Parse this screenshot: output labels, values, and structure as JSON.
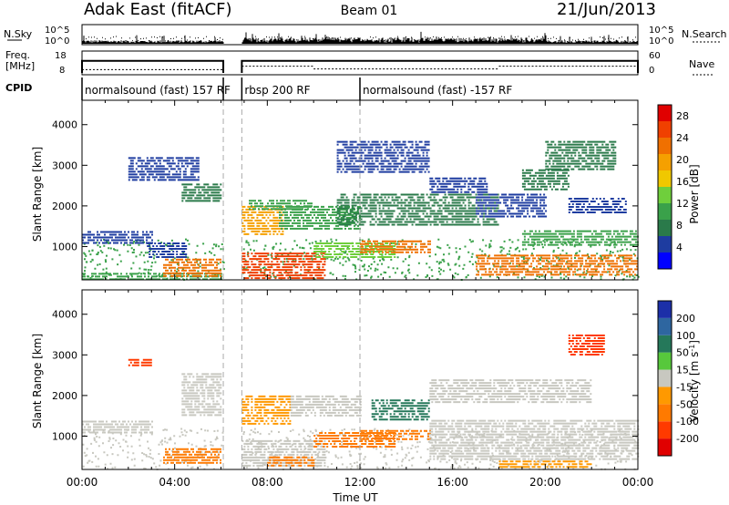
{
  "header": {
    "station": "Adak East (fitACF)",
    "beam": "Beam 01",
    "date": "21/Jun/2013"
  },
  "summary": {
    "nsky_label": "N.Sky",
    "nsearch_label": "N.Search",
    "freq_label_1": "Freq.",
    "freq_label_2": "[MHz]",
    "nave_label": "Nave",
    "cpid_label": "CPID",
    "log_tick_hi": "10^5",
    "log_tick_lo": "10^0",
    "freq_ticks": [
      "18",
      "8"
    ],
    "nave_ticks": [
      "60",
      "0"
    ],
    "cpid_segments": [
      {
        "label": "normalsound (fast) 157 RF",
        "start": 0.0,
        "end": 6.1
      },
      {
        "label": "rbsp 200 RF",
        "start": 6.9,
        "end": 12.0
      },
      {
        "label": "normalsound (fast) -157 RF",
        "start": 12.0,
        "end": 24.0
      }
    ],
    "freq_steps": [
      {
        "start": 0.0,
        "end": 6.1,
        "value": 14
      },
      {
        "start": 6.9,
        "end": 24.0,
        "value": 14
      }
    ],
    "nave_steps": [
      {
        "start": 0.0,
        "end": 6.1,
        "value": 10
      },
      {
        "start": 6.9,
        "end": 10.0,
        "value": 20
      },
      {
        "start": 10.0,
        "end": 18.0,
        "value": 12
      },
      {
        "start": 18.0,
        "end": 24.0,
        "value": 20
      }
    ]
  },
  "power_panel": {
    "ylabel": "Slant Range [km]",
    "colorbar_title": "Power [dB]",
    "colorbar_ticks": [
      "4",
      "8",
      "12",
      "16",
      "20",
      "24",
      "28"
    ],
    "colorbar_colors": [
      "#0000ff",
      "#1e3ca0",
      "#2a7a4a",
      "#3aa14a",
      "#6fcf3c",
      "#f0c800",
      "#f5a000",
      "#f07000",
      "#f04000",
      "#e00000"
    ]
  },
  "velocity_panel": {
    "ylabel": "Slant Range [km]",
    "colorbar_title": "Velocity [m s",
    "colorbar_title_sup": "-1",
    "colorbar_title_end": "]",
    "colorbar_ticks": [
      "200",
      "100",
      "50",
      "15",
      "-15",
      "-50",
      "-100",
      "-200"
    ],
    "colorbar_colors": [
      "#1c2fa8",
      "#2e66a0",
      "#25785a",
      "#57c83c",
      "#c8c8c0",
      "#ff9900",
      "#ff7a00",
      "#ff3a00",
      "#e00000"
    ]
  },
  "xaxis": {
    "label": "Time UT",
    "ticks": [
      "00:00",
      "04:00",
      "08:00",
      "12:00",
      "16:00",
      "20:00",
      "00:00"
    ]
  },
  "chart_data": {
    "type": "heatmap",
    "title": "Adak East (fitACF) Beam 01 21/Jun/2013",
    "xlabel": "Time UT",
    "xlim": [
      0,
      24
    ],
    "ylabel": "Slant Range [km]",
    "ylim": [
      180,
      4600
    ],
    "yticks": [
      1000,
      2000,
      3000,
      4000
    ],
    "data_gap": [
      6.1,
      6.9
    ],
    "power_scale": [
      4,
      28
    ],
    "velocity_scale": [
      -200,
      200
    ],
    "power_bands": [
      {
        "t0": 0.0,
        "t1": 3.0,
        "r0": 1100,
        "r1": 1380,
        "p": 6
      },
      {
        "t0": 0.0,
        "t1": 6.0,
        "r0": 200,
        "r1": 350,
        "p": 12
      },
      {
        "t0": 3.5,
        "t1": 6.0,
        "r0": 250,
        "r1": 700,
        "p": 24
      },
      {
        "t0": 4.3,
        "t1": 6.0,
        "r0": 2100,
        "r1": 2550,
        "p": 10
      },
      {
        "t0": 2.8,
        "t1": 4.5,
        "r0": 700,
        "r1": 1100,
        "p": 7
      },
      {
        "t0": 6.9,
        "t1": 10.5,
        "r0": 200,
        "r1": 850,
        "p": 27
      },
      {
        "t0": 6.9,
        "t1": 8.7,
        "r0": 1300,
        "r1": 2000,
        "p": 20
      },
      {
        "t0": 7.2,
        "t1": 10.0,
        "r0": 1900,
        "r1": 2150,
        "p": 13
      },
      {
        "t0": 8.5,
        "t1": 12.0,
        "r0": 1400,
        "r1": 2000,
        "p": 12
      },
      {
        "t0": 10.0,
        "t1": 13.5,
        "r0": 700,
        "r1": 1100,
        "p": 16
      },
      {
        "t0": 12.0,
        "t1": 15.0,
        "r0": 850,
        "r1": 1150,
        "p": 24
      },
      {
        "t0": 11.0,
        "t1": 18.0,
        "r0": 1500,
        "r1": 2300,
        "p": 9
      },
      {
        "t0": 15.0,
        "t1": 17.5,
        "r0": 2300,
        "r1": 2700,
        "p": 6
      },
      {
        "t0": 17.0,
        "t1": 24.0,
        "r0": 300,
        "r1": 800,
        "p": 24
      },
      {
        "t0": 19.0,
        "t1": 24.0,
        "r0": 1000,
        "r1": 1400,
        "p": 13
      },
      {
        "t0": 17.0,
        "t1": 20.0,
        "r0": 1700,
        "r1": 2300,
        "p": 7
      },
      {
        "t0": 19.0,
        "t1": 21.0,
        "r0": 2400,
        "r1": 2900,
        "p": 10
      },
      {
        "t0": 21.0,
        "t1": 23.5,
        "r0": 1800,
        "r1": 2200,
        "p": 6
      },
      {
        "t0": 2.0,
        "t1": 5.0,
        "r0": 2600,
        "r1": 3200,
        "p": 6
      },
      {
        "t0": 11.0,
        "t1": 15.0,
        "r0": 2800,
        "r1": 3600,
        "p": 6
      },
      {
        "t0": 20.0,
        "t1": 23.0,
        "r0": 2900,
        "r1": 3600,
        "p": 8
      }
    ],
    "velocity_bands": [
      {
        "t0": 0.0,
        "t1": 3.0,
        "r0": 1100,
        "r1": 1380,
        "v": 0
      },
      {
        "t0": 3.5,
        "t1": 6.0,
        "r0": 300,
        "r1": 700,
        "v": -60
      },
      {
        "t0": 4.3,
        "t1": 6.0,
        "r0": 1500,
        "r1": 2550,
        "v": 0
      },
      {
        "t0": 6.9,
        "t1": 10.5,
        "r0": 250,
        "r1": 900,
        "v": 0
      },
      {
        "t0": 8.0,
        "t1": 10.0,
        "r0": 250,
        "r1": 500,
        "v": -60
      },
      {
        "t0": 6.9,
        "t1": 9.0,
        "r0": 1300,
        "r1": 2000,
        "v": -40
      },
      {
        "t0": 9.0,
        "t1": 12.0,
        "r0": 1500,
        "r1": 2000,
        "v": 0
      },
      {
        "t0": 10.0,
        "t1": 13.5,
        "r0": 700,
        "r1": 1100,
        "v": -60
      },
      {
        "t0": 12.0,
        "t1": 15.0,
        "r0": 900,
        "r1": 1150,
        "v": -80
      },
      {
        "t0": 12.5,
        "t1": 15.0,
        "r0": 1400,
        "r1": 1900,
        "v": 50
      },
      {
        "t0": 15.0,
        "t1": 24.0,
        "r0": 400,
        "r1": 1400,
        "v": 0
      },
      {
        "t0": 15.0,
        "t1": 22.0,
        "r0": 1800,
        "r1": 2400,
        "v": 0
      },
      {
        "t0": 18.0,
        "t1": 22.0,
        "r0": 200,
        "r1": 400,
        "v": -40
      },
      {
        "t0": 21.0,
        "t1": 22.5,
        "r0": 3000,
        "r1": 3500,
        "v": -200
      },
      {
        "t0": 2.0,
        "t1": 3.0,
        "r0": 2700,
        "r1": 2900,
        "v": -200
      }
    ]
  }
}
